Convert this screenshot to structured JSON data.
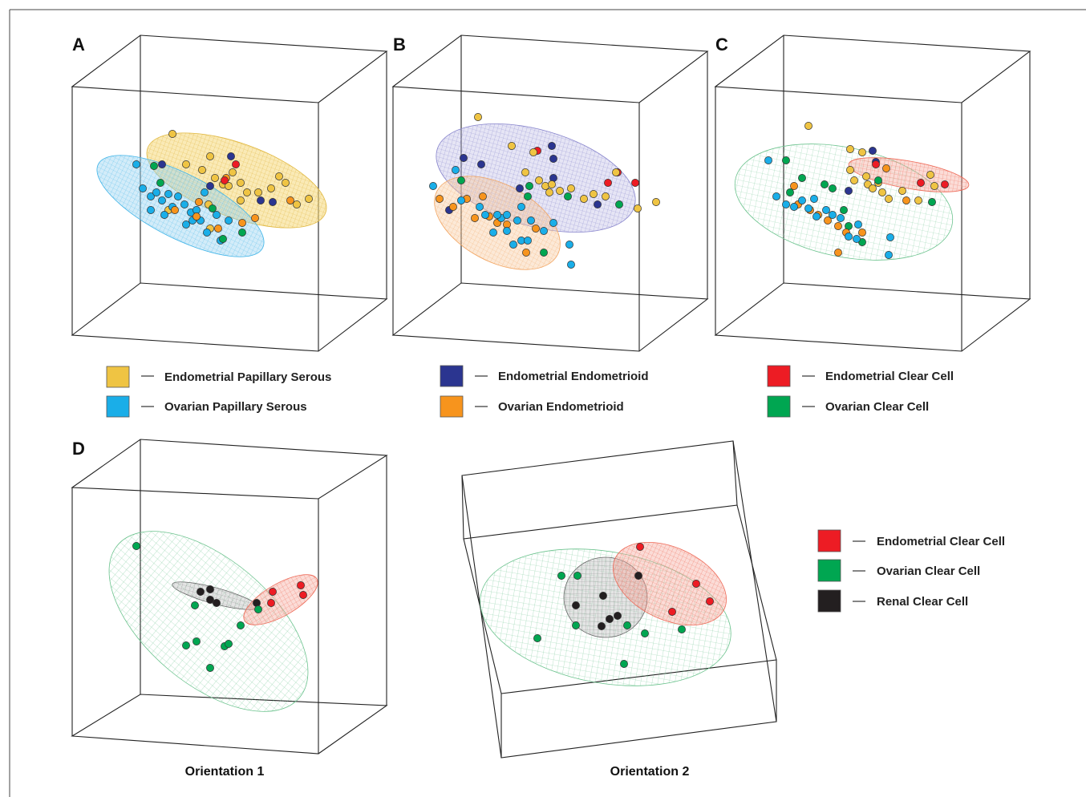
{
  "colors": {
    "endometrial_papillary_serous": "#EFC443",
    "ovarian_papillary_serous": "#1AAEE8",
    "endometrial_endometrioid": "#2B3590",
    "ovarian_endometrioid": "#F7941D",
    "endometrial_clear_cell": "#ED1C24",
    "ovarian_clear_cell": "#00A651",
    "renal_clear_cell": "#231F20"
  },
  "panels": [
    {
      "letter": "A"
    },
    {
      "letter": "B"
    },
    {
      "letter": "C"
    },
    {
      "letter": "D"
    }
  ],
  "legend_top": [
    {
      "label": "Endometrial Papillary Serous",
      "color_key": "endometrial_papillary_serous"
    },
    {
      "label": "Ovarian Papillary Serous",
      "color_key": "ovarian_papillary_serous"
    },
    {
      "label": "Endometrial Endometrioid",
      "color_key": "endometrial_endometrioid"
    },
    {
      "label": "Ovarian Endometrioid",
      "color_key": "ovarian_endometrioid"
    },
    {
      "label": "Endometrial Clear Cell",
      "color_key": "endometrial_clear_cell"
    },
    {
      "label": "Ovarian Clear Cell",
      "color_key": "ovarian_clear_cell"
    }
  ],
  "legend_d": [
    {
      "label": "Endometrial Clear Cell",
      "color_key": "endometrial_clear_cell"
    },
    {
      "label": "Ovarian Clear Cell",
      "color_key": "ovarian_clear_cell"
    },
    {
      "label": "Renal Clear Cell",
      "color_key": "renal_clear_cell"
    }
  ],
  "captions": {
    "orientation_1": "Orientation 1",
    "orientation_2": "Orientation 2"
  },
  "chart_data": [
    {
      "type": "scatter",
      "panel": "A",
      "series": [
        {
          "name": "Endometrial Papillary Serous",
          "color_key": "endometrial_papillary_serous",
          "points": [
            [
              215,
              167
            ],
            [
              262,
              195
            ],
            [
              232,
              205
            ],
            [
              252,
              212
            ],
            [
              268,
              222
            ],
            [
              278,
              230
            ],
            [
              290,
              215
            ],
            [
              285,
              232
            ],
            [
              300,
              228
            ],
            [
              308,
              240
            ],
            [
              322,
              240
            ],
            [
              338,
              235
            ],
            [
              348,
              220
            ],
            [
              356,
              228
            ],
            [
              370,
              255
            ],
            [
              385,
              248
            ],
            [
              300,
              250
            ],
            [
              260,
              255
            ],
            [
              262,
              285
            ],
            [
              210,
              262
            ]
          ]
        },
        {
          "name": "Ovarian Papillary Serous",
          "color_key": "ovarian_papillary_serous",
          "points": [
            [
              170,
              205
            ],
            [
              178,
              235
            ],
            [
              188,
              245
            ],
            [
              195,
              240
            ],
            [
              202,
              250
            ],
            [
              210,
              242
            ],
            [
              215,
              258
            ],
            [
              222,
              245
            ],
            [
              230,
              255
            ],
            [
              238,
              265
            ],
            [
              245,
              262
            ],
            [
              240,
              275
            ],
            [
              232,
              280
            ],
            [
              250,
              275
            ],
            [
              258,
              290
            ],
            [
              270,
              268
            ],
            [
              285,
              275
            ],
            [
              255,
              240
            ],
            [
              188,
              262
            ],
            [
              205,
              268
            ],
            [
              275,
              300
            ]
          ]
        },
        {
          "name": "Endometrial Endometrioid",
          "color_key": "endometrial_endometrioid",
          "points": [
            [
              202,
              205
            ],
            [
              288,
              195
            ],
            [
              262,
              232
            ],
            [
              340,
              252
            ],
            [
              325,
              250
            ]
          ]
        },
        {
          "name": "Ovarian Endometrioid",
          "color_key": "ovarian_endometrioid",
          "points": [
            [
              218,
              262
            ],
            [
              245,
              270
            ],
            [
              272,
              285
            ],
            [
              318,
              272
            ],
            [
              362,
              250
            ],
            [
              248,
              252
            ],
            [
              282,
              222
            ],
            [
              302,
              278
            ]
          ]
        },
        {
          "name": "Endometrial Clear Cell",
          "color_key": "endometrial_clear_cell",
          "points": [
            [
              294,
              205
            ],
            [
              280,
              225
            ]
          ]
        },
        {
          "name": "Ovarian Clear Cell",
          "color_key": "ovarian_clear_cell",
          "points": [
            [
              192,
              207
            ],
            [
              200,
              228
            ],
            [
              278,
              298
            ],
            [
              302,
              290
            ],
            [
              265,
              260
            ]
          ]
        }
      ]
    },
    {
      "type": "scatter",
      "panel": "B",
      "series": [
        {
          "name": "Endometrial Endometrioid",
          "color_key": "endometrial_endometrioid",
          "points": [
            [
              578,
              197
            ],
            [
              688,
              182
            ],
            [
              690,
              198
            ],
            [
              648,
              235
            ],
            [
              690,
              222
            ],
            [
              745,
              255
            ],
            [
              560,
              262
            ],
            [
              600,
              205
            ]
          ]
        },
        {
          "name": "Endometrial Clear Cell",
          "color_key": "endometrial_clear_cell",
          "points": [
            [
              670,
              188
            ],
            [
              770,
              215
            ],
            [
              792,
              228
            ],
            [
              758,
              228
            ]
          ]
        },
        {
          "name": "Endometrial Papillary Serous",
          "color_key": "endometrial_papillary_serous",
          "points": [
            [
              596,
              146
            ],
            [
              638,
              182
            ],
            [
              665,
              190
            ],
            [
              672,
              225
            ],
            [
              680,
              232
            ],
            [
              688,
              230
            ],
            [
              698,
              238
            ],
            [
              712,
              235
            ],
            [
              728,
              248
            ],
            [
              740,
              242
            ],
            [
              755,
              245
            ],
            [
              768,
              215
            ],
            [
              795,
              260
            ],
            [
              818,
              252
            ],
            [
              655,
              215
            ],
            [
              685,
              240
            ]
          ]
        },
        {
          "name": "Ovarian Endometrioid",
          "color_key": "ovarian_endometrioid",
          "points": [
            [
              548,
              248
            ],
            [
              565,
              258
            ],
            [
              582,
              248
            ],
            [
              602,
              245
            ],
            [
              610,
              270
            ],
            [
              620,
              278
            ],
            [
              632,
              280
            ],
            [
              656,
              315
            ],
            [
              668,
              285
            ],
            [
              592,
              272
            ]
          ]
        },
        {
          "name": "Ovarian Papillary Serous",
          "color_key": "ovarian_papillary_serous",
          "points": [
            [
              540,
              232
            ],
            [
              568,
              212
            ],
            [
              575,
              250
            ],
            [
              598,
              258
            ],
            [
              625,
              272
            ],
            [
              632,
              268
            ],
            [
              645,
              275
            ],
            [
              650,
              300
            ],
            [
              658,
              300
            ],
            [
              678,
              288
            ],
            [
              710,
              305
            ],
            [
              712,
              330
            ],
            [
              605,
              268
            ],
            [
              615,
              290
            ],
            [
              632,
              288
            ],
            [
              640,
              305
            ],
            [
              662,
              275
            ],
            [
              650,
              258
            ],
            [
              620,
              268
            ],
            [
              690,
              278
            ]
          ]
        },
        {
          "name": "Ovarian Clear Cell",
          "color_key": "ovarian_clear_cell",
          "points": [
            [
              575,
              225
            ],
            [
              660,
              232
            ],
            [
              708,
              245
            ],
            [
              772,
              255
            ],
            [
              678,
              315
            ],
            [
              658,
              245
            ]
          ]
        }
      ]
    },
    {
      "type": "scatter",
      "panel": "C",
      "series": [
        {
          "name": "Endometrial Papillary Serous",
          "color_key": "endometrial_papillary_serous",
          "points": [
            [
              1008,
              157
            ],
            [
              1060,
              186
            ],
            [
              1075,
              190
            ],
            [
              1080,
              220
            ],
            [
              1082,
              230
            ],
            [
              1088,
              235
            ],
            [
              1095,
              228
            ],
            [
              1100,
              240
            ],
            [
              1108,
              248
            ],
            [
              1125,
              238
            ],
            [
              1145,
              250
            ],
            [
              1160,
              218
            ],
            [
              1165,
              232
            ],
            [
              1060,
              212
            ],
            [
              1065,
              225
            ]
          ]
        },
        {
          "name": "Endometrial Endometrioid",
          "color_key": "endometrial_endometrioid",
          "points": [
            [
              1088,
              188
            ],
            [
              1092,
              202
            ],
            [
              1058,
              238
            ]
          ]
        },
        {
          "name": "Endometrial Clear Cell",
          "color_key": "endometrial_clear_cell",
          "points": [
            [
              1148,
              228
            ],
            [
              1178,
              230
            ],
            [
              1092,
              205
            ]
          ]
        },
        {
          "name": "Ovarian Clear Cell",
          "color_key": "ovarian_clear_cell",
          "points": [
            [
              980,
              200
            ],
            [
              985,
              240
            ],
            [
              1000,
              222
            ],
            [
              1028,
              230
            ],
            [
              1058,
              282
            ],
            [
              1075,
              302
            ],
            [
              1095,
              225
            ],
            [
              1052,
              262
            ],
            [
              1162,
              252
            ],
            [
              1038,
              235
            ]
          ]
        },
        {
          "name": "Ovarian Endometrioid",
          "color_key": "ovarian_endometrioid",
          "points": [
            [
              995,
              255
            ],
            [
              1010,
              262
            ],
            [
              1020,
              268
            ],
            [
              1032,
              275
            ],
            [
              1045,
              282
            ],
            [
              1055,
              290
            ],
            [
              1045,
              315
            ],
            [
              1075,
              290
            ],
            [
              1130,
              250
            ],
            [
              1105,
              210
            ],
            [
              990,
              232
            ]
          ]
        },
        {
          "name": "Ovarian Papillary Serous",
          "color_key": "ovarian_papillary_serous",
          "points": [
            [
              958,
              200
            ],
            [
              968,
              245
            ],
            [
              980,
              255
            ],
            [
              990,
              258
            ],
            [
              1000,
              250
            ],
            [
              1008,
              260
            ],
            [
              1018,
              270
            ],
            [
              1030,
              262
            ],
            [
              1038,
              268
            ],
            [
              1048,
              272
            ],
            [
              1058,
              295
            ],
            [
              1068,
              298
            ],
            [
              1070,
              280
            ],
            [
              1108,
              318
            ],
            [
              1110,
              296
            ],
            [
              1015,
              248
            ]
          ]
        }
      ]
    },
    {
      "type": "scatter",
      "panel": "D-orientation-1",
      "series": [
        {
          "name": "Renal Clear Cell",
          "color_key": "renal_clear_cell",
          "points": [
            [
              250,
              738
            ],
            [
              262,
              735
            ],
            [
              262,
              748
            ],
            [
              270,
              752
            ],
            [
              320,
              752
            ]
          ]
        },
        {
          "name": "Endometrial Clear Cell",
          "color_key": "endometrial_clear_cell",
          "points": [
            [
              340,
              738
            ],
            [
              338,
              752
            ],
            [
              375,
              730
            ],
            [
              378,
              742
            ]
          ]
        },
        {
          "name": "Ovarian Clear Cell",
          "color_key": "ovarian_clear_cell",
          "points": [
            [
              170,
              681
            ],
            [
              243,
              755
            ],
            [
              232,
              805
            ],
            [
              245,
              800
            ],
            [
              262,
              833
            ],
            [
              280,
              806
            ],
            [
              285,
              803
            ],
            [
              300,
              780
            ],
            [
              322,
              760
            ]
          ]
        }
      ]
    },
    {
      "type": "scatter",
      "panel": "D-orientation-2",
      "series": [
        {
          "name": "Renal Clear Cell",
          "color_key": "renal_clear_cell",
          "points": [
            [
              796,
              718
            ],
            [
              752,
              743
            ],
            [
              718,
              755
            ],
            [
              760,
              772
            ],
            [
              750,
              781
            ],
            [
              770,
              768
            ]
          ]
        },
        {
          "name": "Endometrial Clear Cell",
          "color_key": "endometrial_clear_cell",
          "points": [
            [
              798,
              682
            ],
            [
              868,
              728
            ],
            [
              885,
              750
            ],
            [
              838,
              763
            ]
          ]
        },
        {
          "name": "Ovarian Clear Cell",
          "color_key": "ovarian_clear_cell",
          "points": [
            [
              700,
              718
            ],
            [
              720,
              718
            ],
            [
              718,
              780
            ],
            [
              670,
              796
            ],
            [
              782,
              780
            ],
            [
              804,
              790
            ],
            [
              850,
              785
            ],
            [
              778,
              828
            ]
          ]
        }
      ]
    }
  ]
}
